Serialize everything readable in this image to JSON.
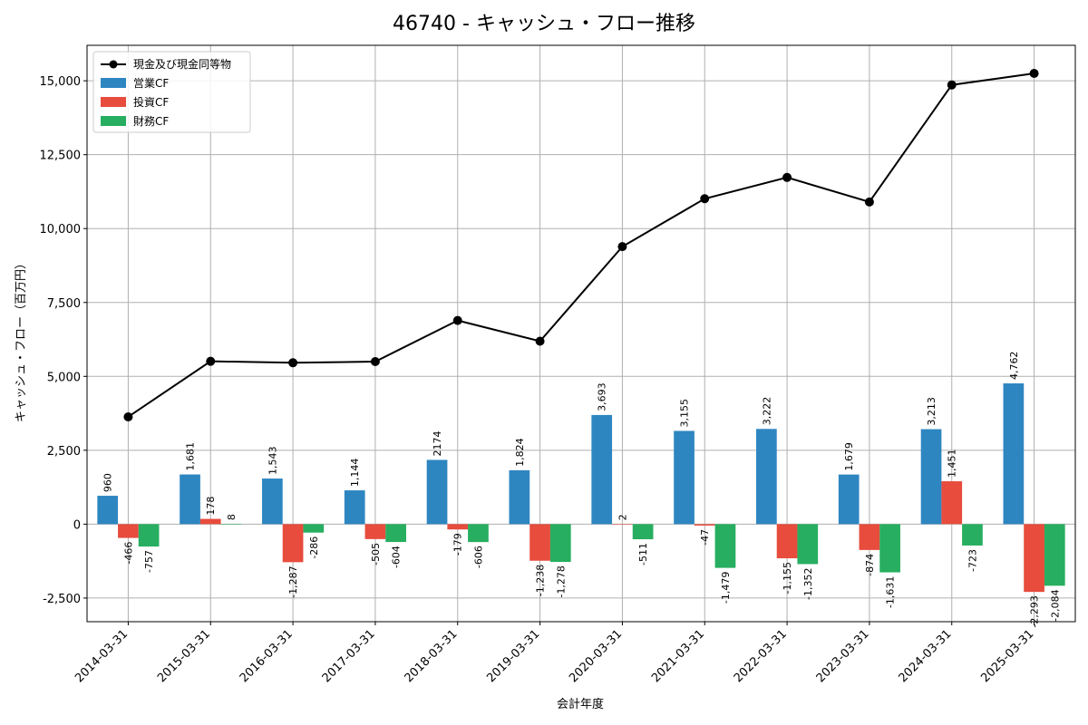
{
  "chart_data": {
    "type": "bar",
    "title": "46740 - キャッシュ・フロー推移",
    "xlabel": "会計年度",
    "ylabel": "キャッシュ・フロー（百万円）",
    "ylim": [
      -3300,
      16200
    ],
    "yticks": [
      -2500,
      0,
      2500,
      5000,
      7500,
      10000,
      12500,
      15000
    ],
    "ytick_labels": [
      "-2,500",
      "0",
      "2,500",
      "5,000",
      "7,500",
      "10,000",
      "12,500",
      "15,000"
    ],
    "grid": true,
    "legend_position": "top-left",
    "categories": [
      "2014-03-31",
      "2015-03-31",
      "2016-03-31",
      "2017-03-31",
      "2018-03-31",
      "2019-03-31",
      "2020-03-31",
      "2021-03-31",
      "2022-03-31",
      "2023-03-31",
      "2024-03-31",
      "2025-03-31"
    ],
    "line": {
      "name": "現金及び現金同等物",
      "color": "#000000",
      "values": [
        3630,
        5510,
        5460,
        5500,
        6890,
        6190,
        9390,
        11010,
        11730,
        10900,
        14860,
        15250
      ]
    },
    "series": [
      {
        "name": "営業CF",
        "color": "#2e86c1",
        "values": [
          960,
          1681,
          1543,
          1144,
          2174,
          1824,
          3693,
          3155,
          3222,
          1679,
          3213,
          4762
        ],
        "labels": [
          "960",
          "1,681",
          "1,543",
          "1,144",
          "2174",
          "1,824",
          "3,693",
          "3,155",
          "3,222",
          "1,679",
          "3,213",
          "4,762"
        ]
      },
      {
        "name": "投資CF",
        "color": "#e74c3c",
        "values": [
          -466,
          178,
          -1287,
          -505,
          -179,
          -1238,
          2,
          -47,
          -1155,
          -874,
          1451,
          -2293
        ],
        "labels": [
          "-466",
          "178",
          "-1,287",
          "-505",
          "-179",
          "-1,238",
          "2",
          "-47",
          "-1,155",
          "-874",
          "1,451",
          "-2,293"
        ]
      },
      {
        "name": "財務CF",
        "color": "#27ae60",
        "values": [
          -757,
          8,
          -286,
          -604,
          -606,
          -1278,
          -511,
          -1479,
          -1352,
          -1631,
          -723,
          -2084
        ],
        "labels": [
          "-757",
          "8",
          "-286",
          "-604",
          "-606",
          "-1,278",
          "-511",
          "-1,479",
          "-1,352",
          "-1,631",
          "-723",
          "-2,084"
        ]
      }
    ]
  }
}
